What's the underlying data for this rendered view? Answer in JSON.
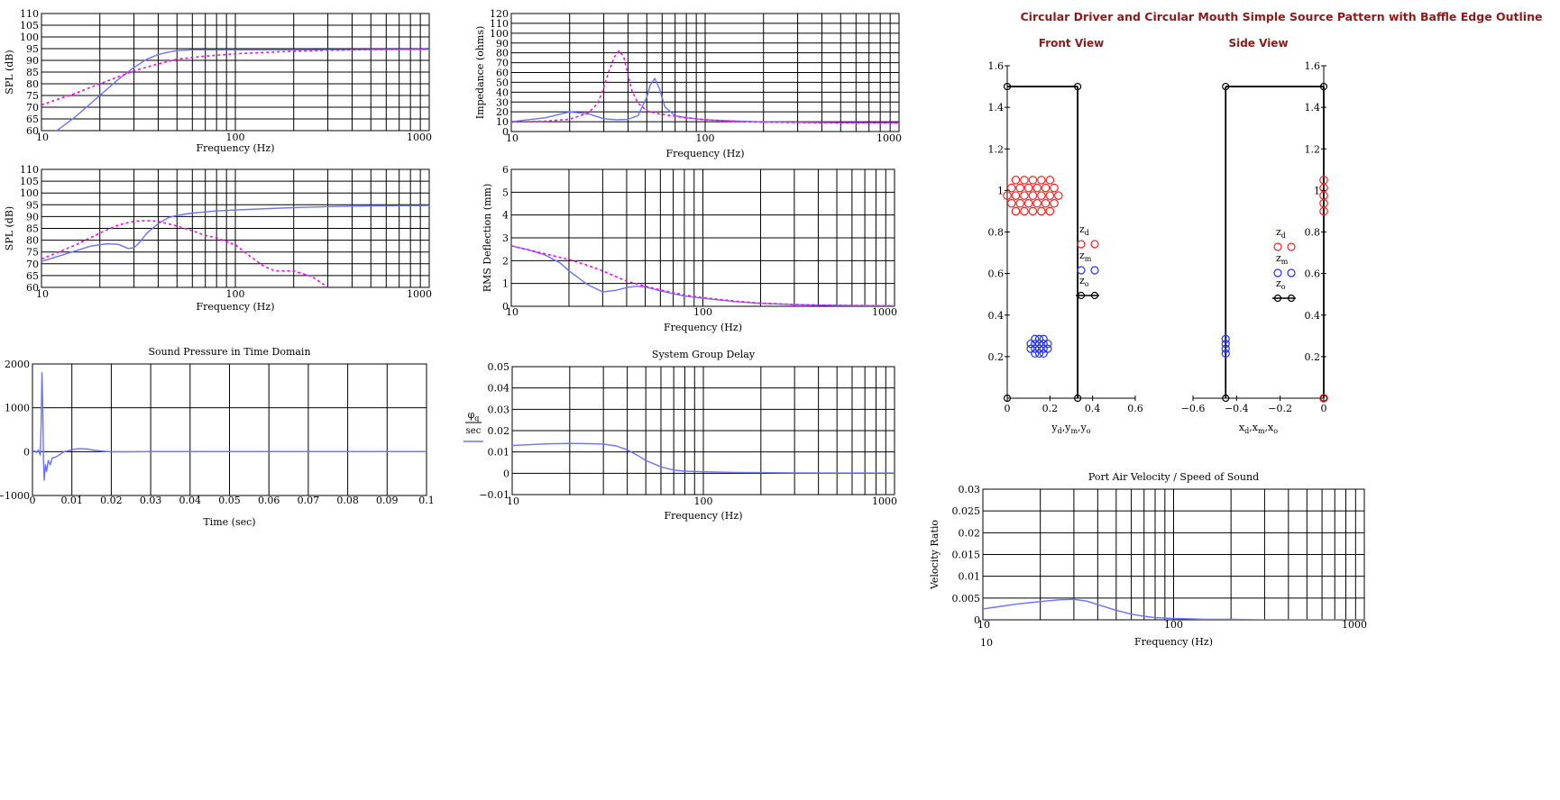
{
  "colors": {
    "solid": "#6a72ff",
    "dashed": "#ff00ff",
    "red": "#ff2020",
    "blue": "#2030ff",
    "black": "#000000",
    "title_red": "#8b1a1a"
  },
  "legend": {
    "zd": "z",
    "zd_sub": "d",
    "zm": "z",
    "zm_sub": "m",
    "zo": "z",
    "zo_sub": "o"
  },
  "chart_data": [
    {
      "id": "spl1",
      "type": "line",
      "xscale": "log",
      "xlim": [
        10,
        1000
      ],
      "ylim": [
        60,
        110
      ],
      "xticks": [
        10,
        100,
        1000
      ],
      "yticks": [
        60,
        65,
        70,
        75,
        80,
        85,
        90,
        95,
        100,
        105,
        110
      ],
      "xlabel": "Frequency (Hz)",
      "ylabel": "SPL (dB)",
      "title": "",
      "series": [
        {
          "style": "solid",
          "x": [
            10,
            12,
            15,
            20,
            25,
            30,
            35,
            40,
            45,
            50,
            60,
            80,
            100,
            200,
            500,
            1000
          ],
          "y": [
            57,
            60,
            66,
            75,
            82,
            87,
            90.5,
            92.5,
            93.5,
            94.2,
            94.5,
            94.5,
            94.5,
            94.5,
            94.6,
            94.7
          ]
        },
        {
          "style": "dashed",
          "x": [
            10,
            15,
            20,
            30,
            40,
            50,
            70,
            100,
            150,
            200,
            300,
            500,
            1000
          ],
          "y": [
            71,
            76,
            80,
            85.5,
            88.5,
            90.5,
            91.8,
            92.8,
            93.5,
            93.9,
            94.3,
            94.6,
            94.8
          ]
        }
      ]
    },
    {
      "id": "spl2",
      "type": "line",
      "xscale": "log",
      "xlim": [
        10,
        1000
      ],
      "ylim": [
        60,
        110
      ],
      "xticks": [
        10,
        100,
        1000
      ],
      "yticks": [
        60,
        65,
        70,
        75,
        80,
        85,
        90,
        95,
        100,
        105,
        110
      ],
      "xlabel": "Frequency (Hz)",
      "ylabel": "SPL (dB)",
      "title": "",
      "series": [
        {
          "style": "solid",
          "x": [
            10,
            12,
            15,
            18,
            22,
            25,
            28,
            30,
            32,
            35,
            40,
            45,
            50,
            60,
            70,
            80,
            100,
            150,
            200,
            300,
            500,
            1000
          ],
          "y": [
            71,
            73,
            75.5,
            77.5,
            78.5,
            78.2,
            76.5,
            76.8,
            79,
            83,
            87,
            89.5,
            90.5,
            91.5,
            92,
            92.4,
            92.8,
            93.4,
            93.8,
            94.2,
            94.5,
            94.7
          ]
        },
        {
          "style": "dashed",
          "x": [
            10,
            15,
            20,
            25,
            30,
            35,
            40,
            50,
            60,
            70,
            80,
            100,
            120,
            140,
            160,
            200,
            250,
            300
          ],
          "y": [
            72,
            78,
            83,
            86.5,
            88,
            88.3,
            88,
            86,
            84,
            82,
            81,
            78,
            73,
            69,
            67,
            67,
            64.5,
            60
          ]
        }
      ]
    },
    {
      "id": "impedance",
      "type": "line",
      "xscale": "log",
      "xlim": [
        10,
        1000
      ],
      "ylim": [
        0,
        120
      ],
      "xticks": [
        10,
        100,
        1000
      ],
      "yticks": [
        0,
        10,
        20,
        30,
        40,
        50,
        60,
        70,
        80,
        90,
        100,
        110,
        120
      ],
      "xlabel": "Frequency (Hz)",
      "ylabel": "Impedance (ohms)",
      "title": "",
      "series": [
        {
          "style": "solid",
          "x": [
            10,
            15,
            20,
            25,
            30,
            35,
            40,
            45,
            50,
            52,
            55,
            58,
            62,
            70,
            80,
            100,
            150,
            200,
            300,
            500,
            1000
          ],
          "y": [
            10,
            14,
            20,
            18,
            13,
            12,
            12.5,
            16,
            35,
            47,
            54,
            44,
            25,
            16,
            14,
            12,
            10.5,
            9.8,
            9.3,
            9,
            8.9
          ]
        },
        {
          "style": "dashed",
          "x": [
            10,
            15,
            20,
            25,
            28,
            30,
            32,
            34,
            36,
            38,
            40,
            42,
            45,
            50,
            55,
            60,
            70,
            80,
            100,
            150,
            200,
            500,
            1000
          ],
          "y": [
            9.5,
            10.5,
            12.5,
            19,
            29,
            45,
            62,
            76,
            82,
            76,
            58,
            41,
            29,
            21,
            19,
            17.5,
            15.5,
            14,
            12,
            10,
            9.5,
            9,
            8.9
          ]
        }
      ]
    },
    {
      "id": "rms",
      "type": "line",
      "xscale": "log",
      "xlim": [
        10,
        1000
      ],
      "ylim": [
        0,
        6
      ],
      "xticks": [
        10,
        100,
        1000
      ],
      "yticks": [
        0,
        1,
        2,
        3,
        4,
        5,
        6
      ],
      "xlabel": "Frequency (Hz)",
      "ylabel": "RMS Deflection (mm)",
      "title": "",
      "series": [
        {
          "style": "solid",
          "x": [
            10,
            12,
            15,
            18,
            20,
            25,
            30,
            35,
            40,
            45,
            50,
            60,
            70,
            80,
            100,
            150,
            200,
            300,
            500,
            1000
          ],
          "y": [
            2.65,
            2.5,
            2.25,
            1.9,
            1.55,
            0.95,
            0.63,
            0.7,
            0.82,
            0.88,
            0.85,
            0.68,
            0.55,
            0.45,
            0.35,
            0.2,
            0.13,
            0.07,
            0.04,
            0.02
          ]
        },
        {
          "style": "dashed",
          "x": [
            10,
            15,
            20,
            25,
            30,
            40,
            50,
            60,
            70,
            80,
            100,
            150,
            200,
            300,
            500,
            1000
          ],
          "y": [
            2.65,
            2.3,
            2.05,
            1.8,
            1.55,
            1.1,
            0.88,
            0.72,
            0.6,
            0.5,
            0.38,
            0.22,
            0.14,
            0.08,
            0.04,
            0.02
          ]
        }
      ]
    },
    {
      "id": "time",
      "type": "line",
      "xscale": "linear",
      "xlim": [
        0,
        0.1
      ],
      "ylim": [
        -1000,
        2000
      ],
      "xticks": [
        0,
        0.01,
        0.02,
        0.03,
        0.04,
        0.05,
        0.06,
        0.07,
        0.08,
        0.09,
        0.1
      ],
      "yticks": [
        -1000,
        0,
        1000,
        2000
      ],
      "xtick_labels": [
        "0",
        "0.01",
        "0.02",
        "0.03",
        "0.04",
        "0.05",
        "0.06",
        "0.07",
        "0.08",
        "0.09",
        "0.1"
      ],
      "ytick_labels": [
        "−1000",
        "0",
        "1000",
        "2000"
      ],
      "xlabel": "Time (sec)",
      "ylabel": "",
      "title": "Sound Pressure in Time Domain",
      "series": [
        {
          "style": "solid",
          "x": [
            0,
            0.0005,
            0.001,
            0.0015,
            0.002,
            0.0022,
            0.0024,
            0.0026,
            0.0028,
            0.003,
            0.0033,
            0.0036,
            0.004,
            0.0045,
            0.005,
            0.006,
            0.007,
            0.008,
            0.009,
            0.01,
            0.012,
            0.014,
            0.016,
            0.018,
            0.02,
            0.025,
            0.03,
            0.1
          ],
          "y": [
            0,
            20,
            -20,
            40,
            -80,
            600,
            1800,
            1100,
            -200,
            -650,
            -300,
            -450,
            -200,
            -300,
            -150,
            -120,
            -60,
            0,
            20,
            50,
            70,
            60,
            30,
            10,
            -5,
            -5,
            0,
            0
          ]
        }
      ]
    },
    {
      "id": "groupdelay",
      "type": "line",
      "xscale": "log",
      "xlim": [
        10,
        1000
      ],
      "ylim": [
        -0.01,
        0.05
      ],
      "xticks": [
        10,
        100,
        1000
      ],
      "yticks": [
        -0.01,
        0,
        0.01,
        0.02,
        0.03,
        0.04,
        0.05
      ],
      "ytick_labels": [
        "−0.01",
        "0",
        "0.01",
        "0.02",
        "0.03",
        "0.04",
        "0.05"
      ],
      "xlabel": "Frequency (Hz)",
      "ylabel": "",
      "title": "System Group Delay",
      "ylegend_num": "φ",
      "ylegend_num_sub": "q",
      "ylegend_den": "sec",
      "series": [
        {
          "style": "solid",
          "x": [
            10,
            15,
            20,
            25,
            30,
            35,
            40,
            45,
            50,
            60,
            70,
            80,
            100,
            150,
            200,
            300,
            500,
            1000
          ],
          "y": [
            0.013,
            0.0138,
            0.014,
            0.0139,
            0.0137,
            0.0128,
            0.011,
            0.0085,
            0.006,
            0.003,
            0.0015,
            0.001,
            0.0007,
            0.0004,
            0.0003,
            0.0002,
            0.0001,
            0.0001
          ]
        }
      ]
    },
    {
      "id": "velocity",
      "type": "line",
      "xscale": "log",
      "xlim": [
        10,
        1000
      ],
      "ylim": [
        0,
        0.03
      ],
      "xticks": [
        10,
        100,
        1000
      ],
      "yticks": [
        0,
        0.005,
        0.01,
        0.015,
        0.02,
        0.025,
        0.03
      ],
      "ytick_labels": [
        "0",
        "0.005",
        "0.01",
        "0.015",
        "0.02",
        "0.025",
        "0.03"
      ],
      "xlabel": "Frequency (Hz)",
      "ylabel": "Velocity Ratio",
      "title": "Port Air Velocity / Speed of Sound",
      "extra_xlabel": "10",
      "series": [
        {
          "style": "solid",
          "x": [
            10,
            12,
            15,
            20,
            25,
            30,
            35,
            40,
            50,
            60,
            70,
            80,
            100,
            150,
            200,
            300,
            500,
            1000
          ],
          "y": [
            0.0025,
            0.003,
            0.0036,
            0.0042,
            0.0046,
            0.0047,
            0.0043,
            0.0035,
            0.0022,
            0.0013,
            0.0008,
            0.0005,
            0.0003,
            0.0001,
            0.0001,
            0,
            0,
            0
          ]
        }
      ]
    },
    {
      "id": "front",
      "type": "scatter",
      "xlim": [
        0,
        0.6
      ],
      "ylim": [
        0,
        1.6
      ],
      "xticks": [
        0,
        0.2,
        0.4,
        0.6
      ],
      "yticks": [
        0.2,
        0.4,
        0.6,
        0.8,
        1,
        1.2,
        1.4,
        1.6
      ],
      "xtick_labels": [
        "0",
        "0.2",
        "0.4",
        "0.6"
      ],
      "ytick_labels": [
        "0.2",
        "0.4",
        "0.6",
        "0.8",
        "1",
        "1.2",
        "1.4",
        "1.6"
      ],
      "title": "Front View",
      "xlabel_parts": [
        [
          "y",
          "d"
        ],
        [
          "y",
          "m"
        ],
        [
          "y",
          "o"
        ]
      ],
      "outline": {
        "x": [
          0,
          0.33,
          0.33,
          0.33
        ],
        "y": [
          1.5,
          1.5,
          0,
          0
        ]
      },
      "outline_points": [
        [
          0,
          1.5
        ],
        [
          0.33,
          1.5
        ],
        [
          0.33,
          0
        ],
        [
          0,
          0
        ]
      ],
      "driver_points": [
        [
          0.04,
          1.05
        ],
        [
          0.08,
          1.05
        ],
        [
          0.12,
          1.05
        ],
        [
          0.16,
          1.05
        ],
        [
          0.2,
          1.05
        ],
        [
          0.02,
          1.012
        ],
        [
          0.06,
          1.012
        ],
        [
          0.1,
          1.012
        ],
        [
          0.14,
          1.012
        ],
        [
          0.18,
          1.012
        ],
        [
          0.22,
          1.012
        ],
        [
          0,
          0.975
        ],
        [
          0.04,
          0.975
        ],
        [
          0.08,
          0.975
        ],
        [
          0.12,
          0.975
        ],
        [
          0.16,
          0.975
        ],
        [
          0.2,
          0.975
        ],
        [
          0.24,
          0.975
        ],
        [
          0.02,
          0.938
        ],
        [
          0.06,
          0.938
        ],
        [
          0.1,
          0.938
        ],
        [
          0.14,
          0.938
        ],
        [
          0.18,
          0.938
        ],
        [
          0.22,
          0.938
        ],
        [
          0.04,
          0.9
        ],
        [
          0.08,
          0.9
        ],
        [
          0.12,
          0.9
        ],
        [
          0.16,
          0.9
        ],
        [
          0.2,
          0.9
        ]
      ],
      "mouth_points": [
        [
          0.13,
          0.285
        ],
        [
          0.15,
          0.285
        ],
        [
          0.17,
          0.285
        ],
        [
          0.11,
          0.262
        ],
        [
          0.13,
          0.262
        ],
        [
          0.15,
          0.262
        ],
        [
          0.17,
          0.262
        ],
        [
          0.19,
          0.262
        ],
        [
          0.11,
          0.238
        ],
        [
          0.13,
          0.238
        ],
        [
          0.15,
          0.238
        ],
        [
          0.17,
          0.238
        ],
        [
          0.19,
          0.238
        ],
        [
          0.13,
          0.215
        ],
        [
          0.15,
          0.215
        ],
        [
          0.17,
          0.215
        ]
      ]
    },
    {
      "id": "side",
      "type": "scatter",
      "xlim": [
        -0.6,
        0
      ],
      "ylim": [
        0,
        1.6
      ],
      "xticks": [
        -0.6,
        -0.4,
        -0.2,
        0
      ],
      "yticks": [
        0.2,
        0.4,
        0.6,
        0.8,
        1,
        1.2,
        1.4,
        1.6
      ],
      "xtick_labels": [
        "−0.6",
        "−0.4",
        "−0.2",
        "0"
      ],
      "ytick_labels": [
        "0.2",
        "0.4",
        "0.6",
        "0.8",
        "1",
        "1.2",
        "1.4",
        "1.6"
      ],
      "title": "Side View",
      "xlabel_parts": [
        [
          "x",
          "d"
        ],
        [
          "x",
          "m"
        ],
        [
          "x",
          "o"
        ]
      ],
      "outline_points": [
        [
          -0.45,
          1.5
        ],
        [
          0,
          1.5
        ],
        [
          -0.45,
          0
        ],
        [
          0,
          0
        ]
      ],
      "driver_points": [
        [
          0,
          1.05
        ],
        [
          0,
          1.012
        ],
        [
          0,
          0.975
        ],
        [
          0,
          0.938
        ],
        [
          0,
          0.9
        ],
        [
          0,
          0
        ]
      ],
      "mouth_points": [
        [
          -0.45,
          0.285
        ],
        [
          -0.45,
          0.262
        ],
        [
          -0.45,
          0.238
        ],
        [
          -0.45,
          0.215
        ]
      ]
    }
  ],
  "main_title": "Circular Driver and Circular Mouth Simple Source Pattern with Baffle Edge Outline"
}
